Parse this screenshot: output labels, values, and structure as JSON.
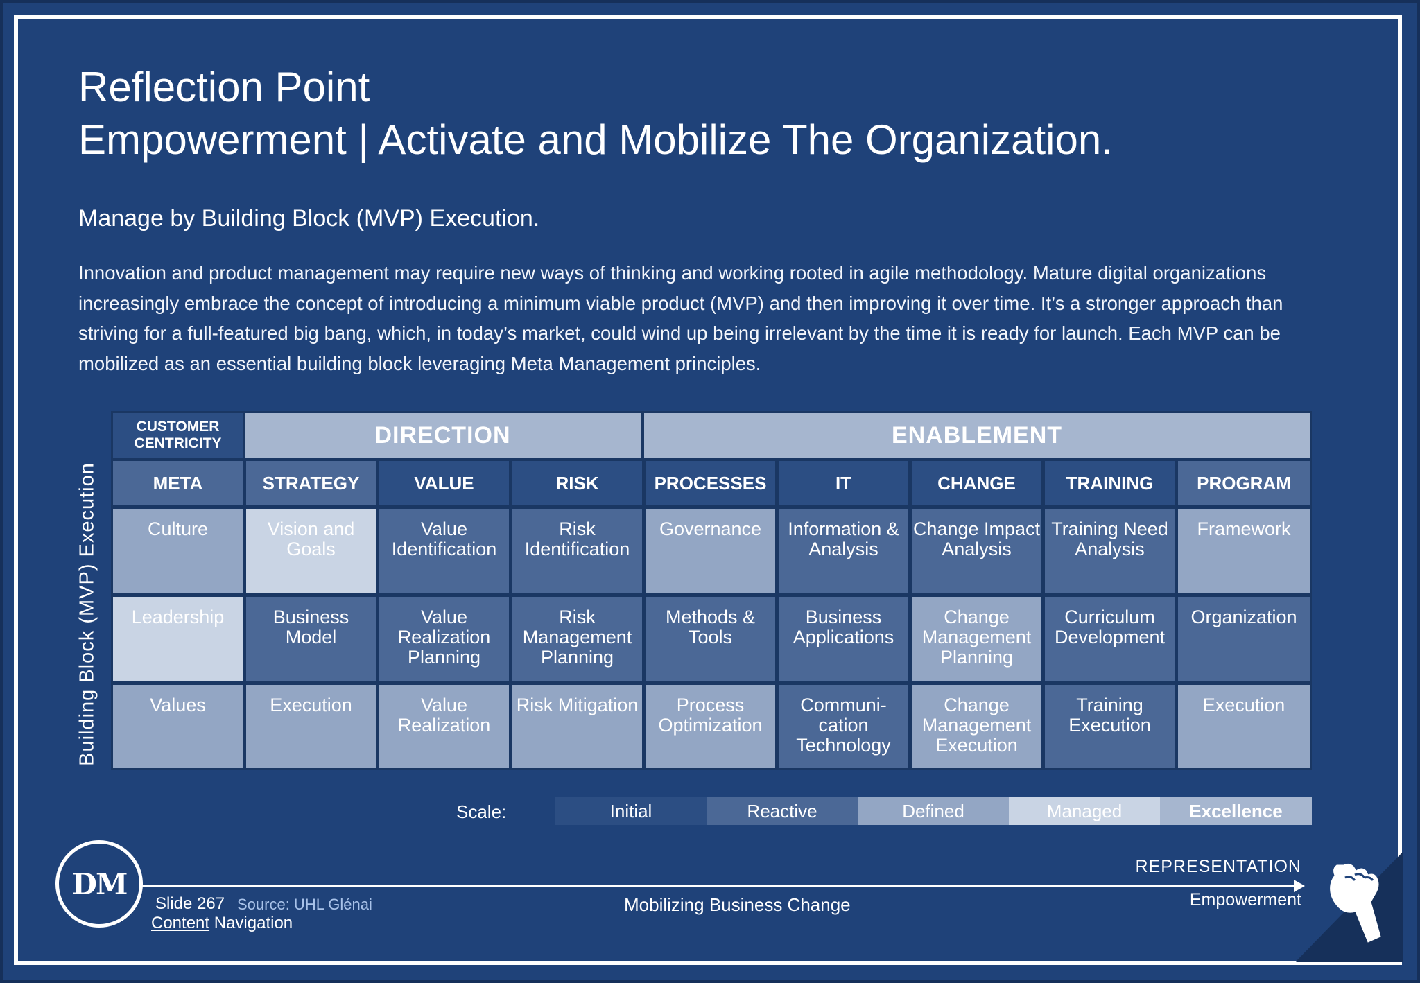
{
  "header": {
    "title_line1": "Reflection Point",
    "title_line2": "Empowerment | Activate and Mobilize The Organization.",
    "subtitle": "Manage by Building Block (MVP) Execution.",
    "paragraph": "Innovation and product management may require new ways of thinking and working rooted in agile methodology. Mature digital organizations increasingly embrace the concept of introducing a minimum viable product (MVP) and then improving it over time. It’s a stronger approach than striving for a full-featured big bang, which, in today’s market, could wind up being irrelevant by the time it is ready for launch.  Each MVP can be mobilized as an essential building block leveraging Meta Management principles."
  },
  "matrix": {
    "side_label": "Building Block (MVP) Execution",
    "customer_centricity": "CUSTOMER CENTRICITY",
    "groups": {
      "direction": "DIRECTION",
      "enablement": "ENABLEMENT"
    },
    "columns": [
      {
        "header": "META",
        "cells": [
          "Culture",
          "Leadership",
          "Values"
        ]
      },
      {
        "header": "STRATEGY",
        "cells": [
          "Vision and Goals",
          "Business Model",
          "Execution"
        ]
      },
      {
        "header": "VALUE",
        "cells": [
          "Value Identification",
          "Value Realization Planning",
          "Value Realization"
        ]
      },
      {
        "header": "RISK",
        "cells": [
          "Risk Identification",
          "Risk Management Planning",
          "Risk Mitigation"
        ]
      },
      {
        "header": "PROCESSES",
        "cells": [
          "Governance",
          "Methods & Tools",
          "Process Optimization"
        ]
      },
      {
        "header": "IT",
        "cells": [
          "Information & Analysis",
          "Business Applications",
          "Communi-cation Technology"
        ]
      },
      {
        "header": "CHANGE",
        "cells": [
          "Change Impact Analysis",
          "Change Management Planning",
          "Change Management Execution"
        ]
      },
      {
        "header": "TRAINING",
        "cells": [
          "Training Need Analysis",
          "Curriculum Development",
          "Training Execution"
        ]
      },
      {
        "header": "PROGRAM",
        "cells": [
          "Framework",
          "Organization",
          "Execution"
        ]
      }
    ],
    "scale_label": "Scale:",
    "scale": [
      "Initial",
      "Reactive",
      "Defined",
      "Managed",
      "Excellence"
    ],
    "colors": {
      "initial": "#2c4e83",
      "reactive": "#4b6896",
      "defined": "#93a6c4",
      "managed": "#c9d4e4",
      "excellence": "#a6b6cf"
    }
  },
  "footer": {
    "logo_text": "DM",
    "slide": "Slide 267",
    "source": "Source: UHL Glénai",
    "nav_content": "Content",
    "nav_navigation": " Navigation",
    "center": "Mobilizing Business Change",
    "representation": "REPRESENTATION",
    "empowerment": "Empowerment",
    "corner_icon": "raised-fist-icon"
  }
}
